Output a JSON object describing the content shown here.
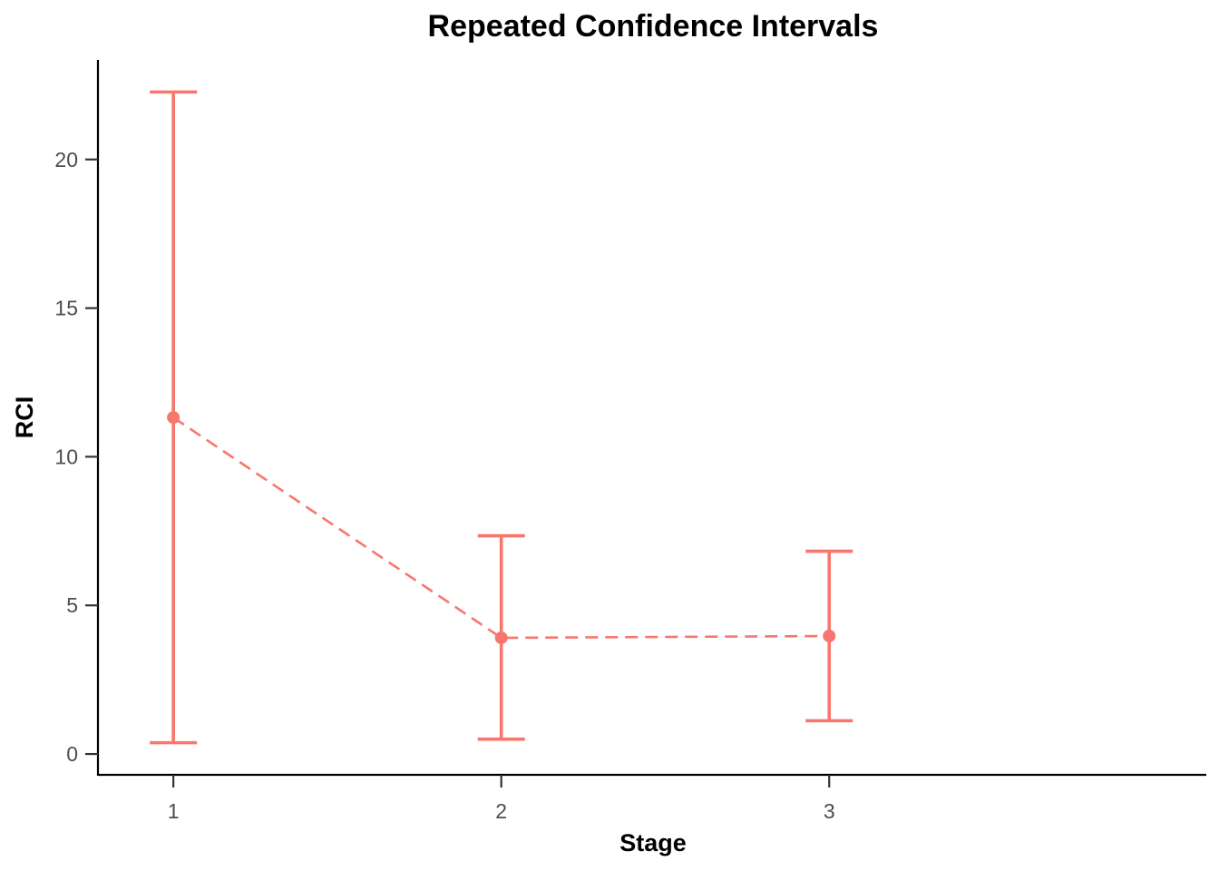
{
  "chart_data": {
    "type": "line",
    "title": "Repeated Confidence Intervals",
    "xlabel": "Stage",
    "ylabel": "RCI",
    "x": [
      1,
      2,
      3
    ],
    "series": [
      {
        "values": [
          11.32,
          3.91,
          3.97
        ],
        "lower": [
          0.38,
          0.5,
          1.12
        ],
        "upper": [
          22.27,
          7.34,
          6.82
        ],
        "color": "#F8766D",
        "line_style": "dashed",
        "error_bars": true
      }
    ],
    "x_ticks": [
      1,
      2,
      3
    ],
    "y_ticks": [
      0,
      5,
      10,
      15,
      20
    ],
    "xlim": [
      0.77,
      4.15
    ],
    "ylim": [
      -0.7,
      23.35
    ],
    "grid": false,
    "legend": "none"
  }
}
